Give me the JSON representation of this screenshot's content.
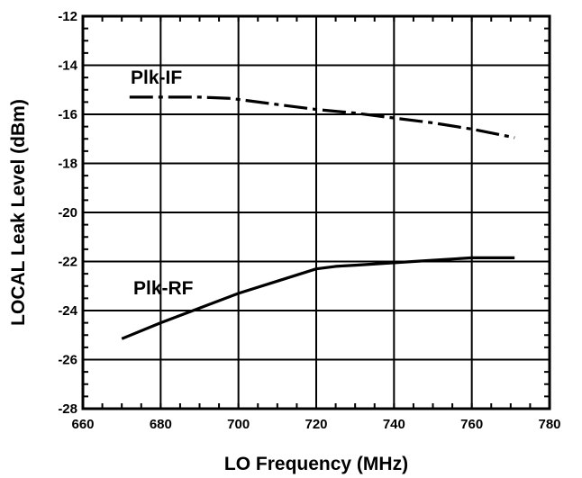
{
  "chart_data": {
    "type": "line",
    "title": "",
    "xlabel": "LO Frequency (MHz)",
    "ylabel": "LOCAL Leak Level (dBm)",
    "xlim": [
      660,
      780
    ],
    "ylim": [
      -28,
      -12
    ],
    "xticks": [
      660,
      680,
      700,
      720,
      740,
      760,
      780
    ],
    "yticks": [
      -28,
      -26,
      -24,
      -22,
      -20,
      -18,
      -16,
      -14,
      -12
    ],
    "grid": true,
    "series": [
      {
        "name": "Plk-IF",
        "style": "dash-dot",
        "color": "#000000",
        "x": [
          672,
          680,
          690,
          698,
          710,
          720,
          730,
          740,
          750,
          760,
          771
        ],
        "y": [
          -15.3,
          -15.3,
          -15.3,
          -15.35,
          -15.6,
          -15.8,
          -15.95,
          -16.15,
          -16.35,
          -16.6,
          -16.95
        ]
      },
      {
        "name": "Plk-RF",
        "style": "solid",
        "color": "#000000",
        "x": [
          670,
          680,
          690,
          700,
          710,
          720,
          725,
          730,
          740,
          750,
          760,
          771
        ],
        "y": [
          -25.15,
          -24.5,
          -23.9,
          -23.3,
          -22.8,
          -22.3,
          -22.2,
          -22.15,
          -22.05,
          -21.95,
          -21.85,
          -21.85
        ]
      }
    ]
  }
}
